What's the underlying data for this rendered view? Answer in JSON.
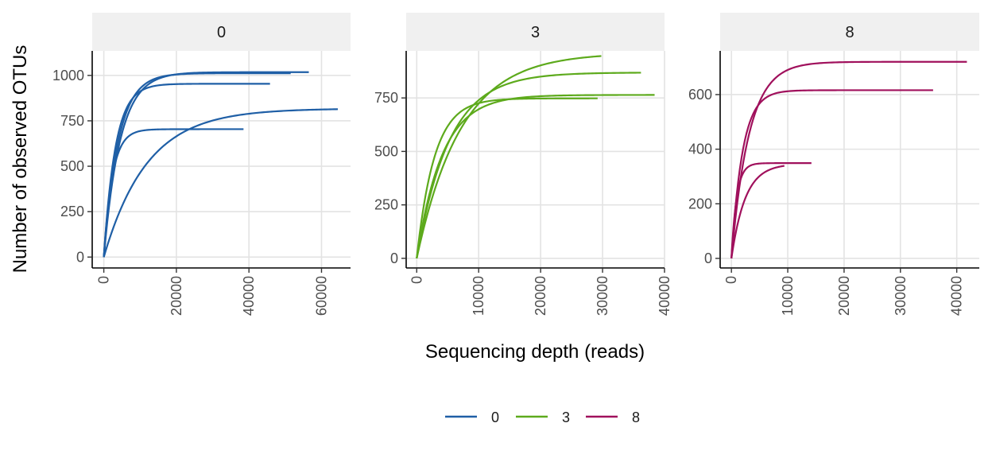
{
  "chart_data": {
    "type": "line",
    "title": "",
    "xlabel": "Sequencing depth (reads)",
    "ylabel": "Number of observed OTUs",
    "grid": true,
    "legend": {
      "position": "bottom",
      "entries": [
        {
          "label": "0",
          "color": "#1F5FA6"
        },
        {
          "label": "3",
          "color": "#5DAA1C"
        },
        {
          "label": "8",
          "color": "#A0105C"
        }
      ]
    },
    "panels": [
      {
        "strip": "0",
        "color": "#1F5FA6",
        "xlim": [
          -3200,
          68000
        ],
        "ylim": [
          -60,
          1135
        ],
        "xticks": [
          0,
          20000,
          40000,
          60000
        ],
        "xtick_labels": [
          "0",
          "20000",
          "40000",
          "60000"
        ],
        "yticks": [
          0,
          250,
          500,
          750,
          1000
        ],
        "ytick_labels": [
          "0",
          "250",
          "500",
          "750",
          "1000"
        ],
        "curves": [
          {
            "max_x": 56500,
            "max_y": 1018,
            "k": 0.08
          },
          {
            "max_x": 51500,
            "max_y": 1012,
            "k": 0.078
          },
          {
            "max_x": 45800,
            "max_y": 954,
            "k": 0.07
          },
          {
            "max_x": 38500,
            "max_y": 704,
            "k": 0.0615
          },
          {
            "max_x": 64500,
            "max_y": 814,
            "k": 0.185
          }
        ]
      },
      {
        "strip": "3",
        "color": "#5DAA1C",
        "xlim": [
          -1700,
          40000
        ],
        "ylim": [
          -45,
          970
        ],
        "xticks": [
          0,
          10000,
          20000,
          30000,
          40000
        ],
        "xtick_labels": [
          "0",
          "10000",
          "20000",
          "30000",
          "40000"
        ],
        "yticks": [
          0,
          250,
          500,
          750
        ],
        "ytick_labels": [
          "0",
          "250",
          "500",
          "750"
        ],
        "curves": [
          {
            "max_x": 29800,
            "max_y": 946,
            "k": 0.24
          },
          {
            "max_x": 36200,
            "max_y": 868,
            "k": 0.145
          },
          {
            "max_x": 29200,
            "max_y": 748,
            "k": 0.098
          },
          {
            "max_x": 38400,
            "max_y": 764,
            "k": 0.107
          }
        ]
      },
      {
        "strip": "8",
        "color": "#A0105C",
        "xlim": [
          -2000,
          44000
        ],
        "ylim": [
          -35,
          760
        ],
        "xticks": [
          0,
          10000,
          20000,
          30000,
          40000
        ],
        "xtick_labels": [
          "0",
          "10000",
          "20000",
          "30000",
          "40000"
        ],
        "yticks": [
          0,
          200,
          400,
          600
        ],
        "ytick_labels": [
          "0",
          "200",
          "400",
          "600"
        ],
        "curves": [
          {
            "max_x": 41800,
            "max_y": 720,
            "k": 0.075
          },
          {
            "max_x": 35800,
            "max_y": 616,
            "k": 0.055
          },
          {
            "max_x": 14200,
            "max_y": 349,
            "k": 0.065
          },
          {
            "max_x": 9400,
            "max_y": 339,
            "k": 0.26
          }
        ]
      }
    ]
  }
}
